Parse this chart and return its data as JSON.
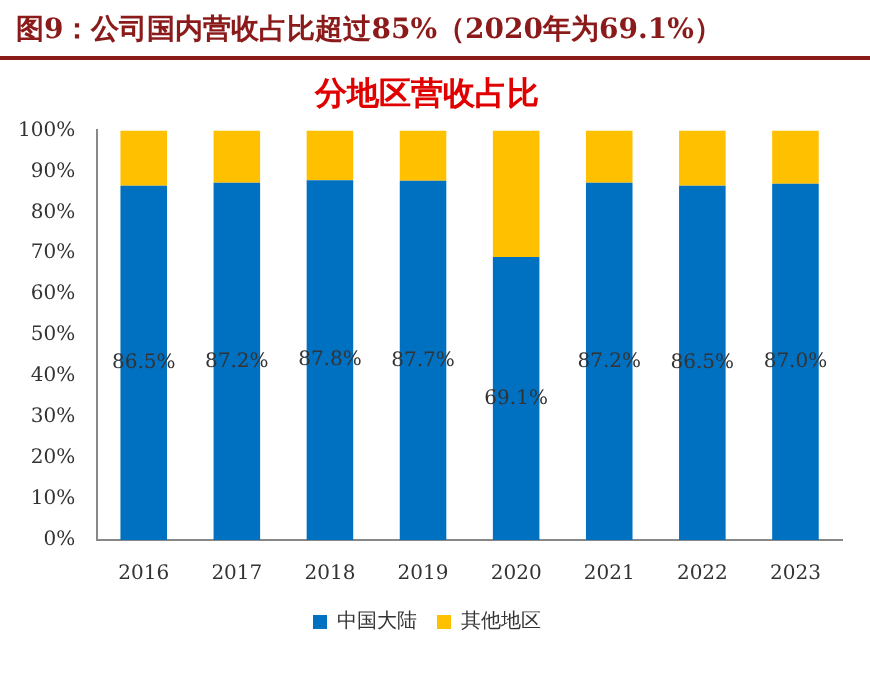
{
  "chart_data": {
    "type": "bar",
    "title": "图9：公司国内营收占比超过85%（2020年为69.1%）",
    "subtitle": "分地区营收占比",
    "categories": [
      "2016",
      "2017",
      "2018",
      "2019",
      "2020",
      "2021",
      "2022",
      "2023"
    ],
    "stacked": true,
    "series": [
      {
        "name": "中国大陆",
        "color": "#0070c0",
        "values": [
          86.5,
          87.2,
          87.8,
          87.7,
          69.1,
          87.2,
          86.5,
          87.0
        ],
        "value_labels": [
          "86.5%",
          "87.2%",
          "87.8%",
          "87.7%",
          "69.1%",
          "87.2%",
          "86.5%",
          "87.0%"
        ]
      },
      {
        "name": "其他地区",
        "color": "#ffc000",
        "values": [
          13.5,
          12.8,
          12.2,
          12.3,
          30.9,
          12.8,
          13.5,
          13.0
        ]
      }
    ],
    "ylim": [
      0,
      100
    ],
    "yticks": [
      {
        "value": 0,
        "label": "0%"
      },
      {
        "value": 10,
        "label": "10%"
      },
      {
        "value": 20,
        "label": "20%"
      },
      {
        "value": 30,
        "label": "30%"
      },
      {
        "value": 40,
        "label": "40%"
      },
      {
        "value": 50,
        "label": "50%"
      },
      {
        "value": 60,
        "label": "60%"
      },
      {
        "value": 70,
        "label": "70%"
      },
      {
        "value": 80,
        "label": "80%"
      },
      {
        "value": 90,
        "label": "90%"
      },
      {
        "value": 100,
        "label": "100%"
      }
    ],
    "grid": false,
    "legend": "bottom"
  }
}
